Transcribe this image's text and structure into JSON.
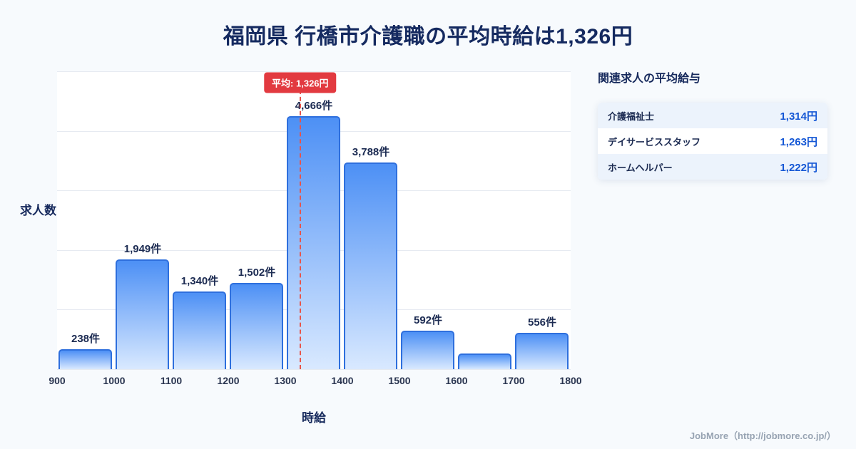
{
  "page": {
    "title": "福岡県 行橋市介護職の平均時給は1,326円",
    "footer": "JobMore（http://jobmore.co.jp/）"
  },
  "chart_data": {
    "type": "bar",
    "title": "福岡県 行橋市介護職の平均時給は1,326円",
    "xlabel": "時給",
    "ylabel": "求人数",
    "x_range": [
      900,
      1800
    ],
    "x_ticks": [
      900,
      1000,
      1100,
      1200,
      1300,
      1400,
      1500,
      1600,
      1700,
      1800
    ],
    "ylim": [
      0,
      5000
    ],
    "grid": "horizontal",
    "bins": [
      {
        "range": [
          900,
          1000
        ],
        "value": 238,
        "label": "238件"
      },
      {
        "range": [
          1000,
          1100
        ],
        "value": 1949,
        "label": "1,949件"
      },
      {
        "range": [
          1100,
          1200
        ],
        "value": 1340,
        "label": "1,340件"
      },
      {
        "range": [
          1200,
          1300
        ],
        "value": 1502,
        "label": "1,502件"
      },
      {
        "range": [
          1300,
          1400
        ],
        "value": 4666,
        "label": "4,666件"
      },
      {
        "range": [
          1400,
          1500
        ],
        "value": 3788,
        "label": "3,788件"
      },
      {
        "range": [
          1500,
          1600
        ],
        "value": 592,
        "label": "592件"
      },
      {
        "range": [
          1600,
          1700
        ],
        "value": 160,
        "label": ""
      },
      {
        "range": [
          1700,
          1800
        ],
        "value": 556,
        "label": "556件"
      }
    ],
    "average": {
      "value": 1326,
      "label": "平均: 1,326円"
    },
    "bar_color_top": "#4d90f5",
    "bar_color_bottom": "#d9e9ff",
    "bar_border_color": "#2e6fdd",
    "average_line_color": "#e8544b",
    "average_badge_color": "#e23a40"
  },
  "sidebar": {
    "heading": "関連求人の平均給与",
    "rows": [
      {
        "name": "介護福祉士",
        "value": "1,314円"
      },
      {
        "name": "デイサービススタッフ",
        "value": "1,263円"
      },
      {
        "name": "ホームヘルパー",
        "value": "1,222円"
      }
    ]
  }
}
